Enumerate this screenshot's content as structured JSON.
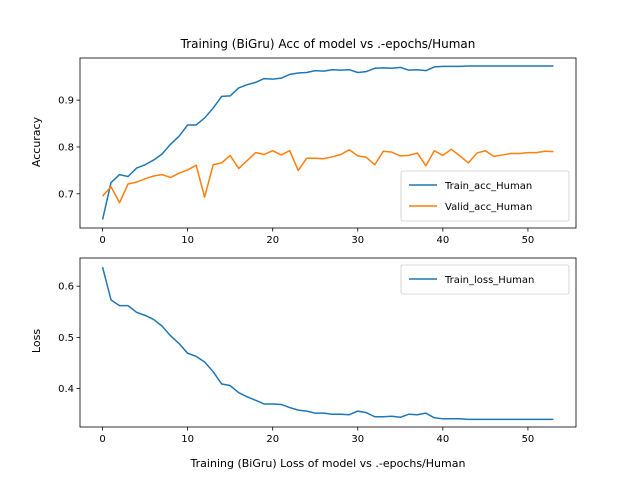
{
  "chart_data": [
    {
      "type": "line",
      "title": "Training (BiGru) Acc of model vs .-epochs/Human",
      "xlabel": "",
      "ylabel": "Accuracy",
      "xlim": [
        -2.65,
        55.65
      ],
      "ylim": [
        0.627,
        0.99
      ],
      "x_ticks": [
        0,
        10,
        20,
        30,
        40,
        50
      ],
      "y_ticks": [
        0.7,
        0.8,
        0.9
      ],
      "legend_position": "bottom-right",
      "grid": false,
      "series": [
        {
          "name": "Train_acc_Human",
          "color": "#1f77b4",
          "x": [
            0,
            1,
            2,
            3,
            4,
            5,
            6,
            7,
            8,
            9,
            10,
            11,
            12,
            13,
            14,
            15,
            16,
            17,
            18,
            19,
            20,
            21,
            22,
            23,
            24,
            25,
            26,
            27,
            28,
            29,
            30,
            31,
            32,
            33,
            34,
            35,
            36,
            37,
            38,
            39,
            40,
            41,
            42,
            43,
            44,
            45,
            46,
            47,
            48,
            49,
            50,
            51,
            52,
            53
          ],
          "y": [
            0.645,
            0.724,
            0.741,
            0.737,
            0.755,
            0.762,
            0.772,
            0.785,
            0.806,
            0.823,
            0.847,
            0.847,
            0.862,
            0.883,
            0.908,
            0.909,
            0.926,
            0.933,
            0.938,
            0.946,
            0.945,
            0.947,
            0.955,
            0.958,
            0.959,
            0.963,
            0.962,
            0.965,
            0.964,
            0.965,
            0.959,
            0.961,
            0.968,
            0.969,
            0.968,
            0.97,
            0.964,
            0.965,
            0.963,
            0.971,
            0.972,
            0.972,
            0.972,
            0.973,
            0.973,
            0.973,
            0.973,
            0.973,
            0.973,
            0.973,
            0.973,
            0.973,
            0.973,
            0.973
          ]
        },
        {
          "name": "Valid_acc_Human",
          "color": "#ff7f0e",
          "x": [
            0,
            1,
            2,
            3,
            4,
            5,
            6,
            7,
            8,
            9,
            10,
            11,
            12,
            13,
            14,
            15,
            16,
            17,
            18,
            19,
            20,
            21,
            22,
            23,
            24,
            25,
            26,
            27,
            28,
            29,
            30,
            31,
            32,
            33,
            34,
            35,
            36,
            37,
            38,
            39,
            40,
            41,
            42,
            43,
            44,
            45,
            46,
            47,
            48,
            49,
            50,
            51,
            52,
            53
          ],
          "y": [
            0.695,
            0.715,
            0.681,
            0.721,
            0.725,
            0.732,
            0.738,
            0.741,
            0.735,
            0.744,
            0.751,
            0.761,
            0.693,
            0.762,
            0.766,
            0.782,
            0.754,
            0.771,
            0.788,
            0.784,
            0.792,
            0.783,
            0.792,
            0.75,
            0.776,
            0.776,
            0.775,
            0.779,
            0.784,
            0.794,
            0.781,
            0.778,
            0.762,
            0.791,
            0.789,
            0.781,
            0.782,
            0.787,
            0.76,
            0.792,
            0.782,
            0.795,
            0.781,
            0.766,
            0.787,
            0.792,
            0.78,
            0.783,
            0.786,
            0.786,
            0.788,
            0.788,
            0.791,
            0.79
          ]
        }
      ]
    },
    {
      "type": "line",
      "title": "",
      "xlabel": "Training (BiGru) Loss of model vs .-epochs/Human",
      "ylabel": "Loss",
      "xlim": [
        -2.65,
        55.65
      ],
      "ylim": [
        0.325,
        0.655
      ],
      "x_ticks": [
        0,
        10,
        20,
        30,
        40,
        50
      ],
      "y_ticks": [
        0.4,
        0.5,
        0.6
      ],
      "legend_position": "top-right",
      "grid": false,
      "series": [
        {
          "name": "Train_loss_Human",
          "color": "#1f77b4",
          "x": [
            0,
            1,
            2,
            3,
            4,
            5,
            6,
            7,
            8,
            9,
            10,
            11,
            12,
            13,
            14,
            15,
            16,
            17,
            18,
            19,
            20,
            21,
            22,
            23,
            24,
            25,
            26,
            27,
            28,
            29,
            30,
            31,
            32,
            33,
            34,
            35,
            36,
            37,
            38,
            39,
            40,
            41,
            42,
            43,
            44,
            45,
            46,
            47,
            48,
            49,
            50,
            51,
            52,
            53
          ],
          "y": [
            0.637,
            0.573,
            0.562,
            0.562,
            0.549,
            0.543,
            0.535,
            0.522,
            0.503,
            0.488,
            0.469,
            0.463,
            0.452,
            0.433,
            0.409,
            0.406,
            0.392,
            0.384,
            0.377,
            0.37,
            0.37,
            0.369,
            0.363,
            0.358,
            0.356,
            0.352,
            0.352,
            0.35,
            0.35,
            0.349,
            0.356,
            0.353,
            0.345,
            0.345,
            0.346,
            0.344,
            0.35,
            0.349,
            0.352,
            0.343,
            0.341,
            0.341,
            0.341,
            0.34,
            0.34,
            0.34,
            0.34,
            0.34,
            0.34,
            0.34,
            0.34,
            0.34,
            0.34,
            0.34
          ]
        }
      ]
    }
  ]
}
